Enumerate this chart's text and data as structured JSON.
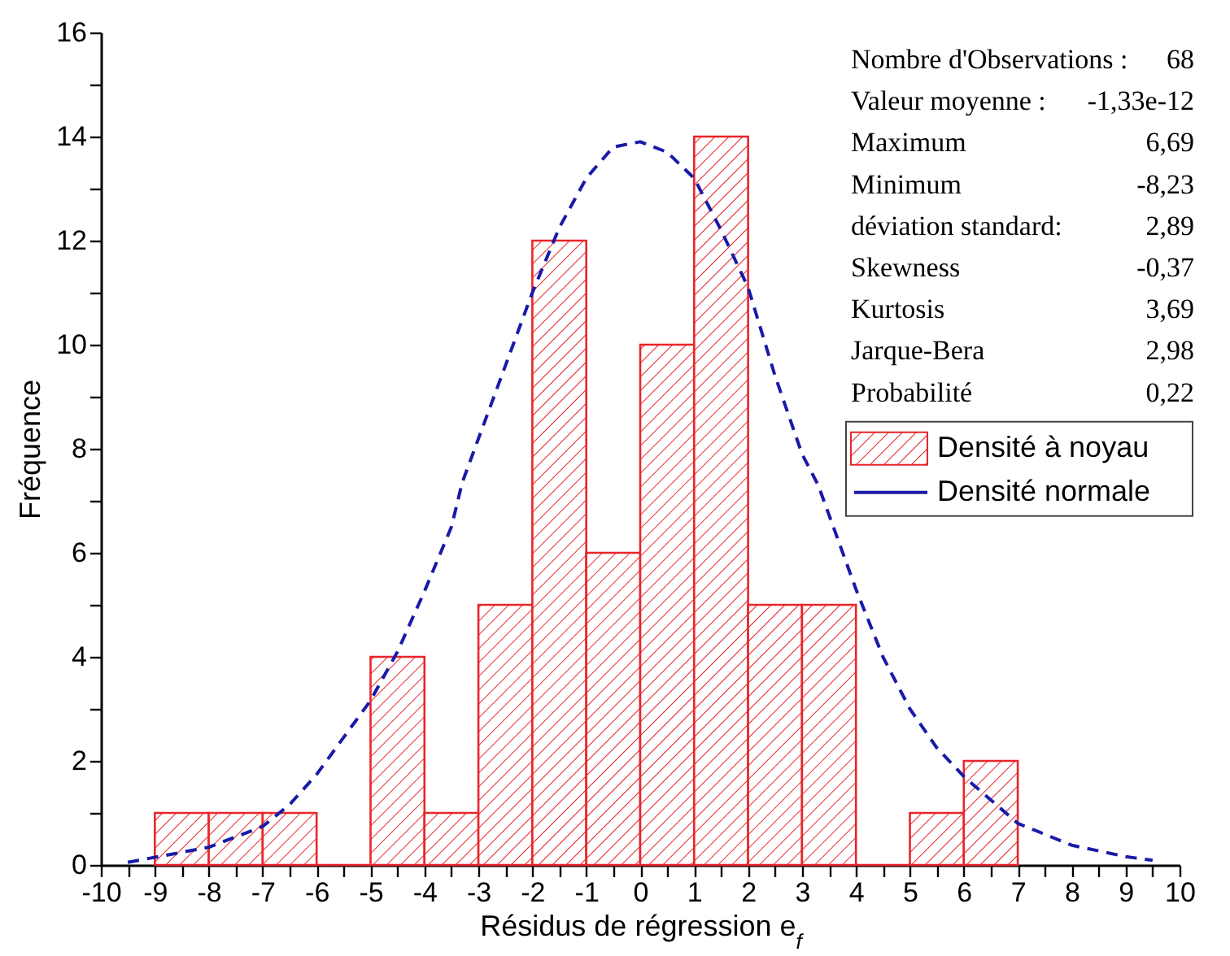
{
  "chart_data": {
    "type": "histogram",
    "xlabel": "Résidus de régression e$_{f}$",
    "ylabel": "Fréquence",
    "bins": [
      -9,
      -8,
      -7,
      -6,
      -5,
      -4,
      -3,
      -2,
      -1,
      0,
      1,
      2,
      3,
      4,
      5,
      6,
      7
    ],
    "series": [
      {
        "name": "Densité à noyau",
        "color": "#e8262b",
        "values": [
          1,
          1,
          1,
          0,
          4,
          1,
          5,
          12,
          6,
          10,
          14,
          5,
          5,
          0,
          1,
          2
        ]
      },
      {
        "name": "Densité normale",
        "type": "line",
        "color": "#1a1aa8",
        "line_style": "dashed",
        "x": [
          -9.5,
          -8,
          -7,
          -6.5,
          -6,
          -5,
          -4.5,
          -4,
          -3.5,
          -3.3,
          -2,
          -1.5,
          -1,
          -0.5,
          0,
          0.5,
          1,
          1.5,
          2,
          2.5,
          3,
          3.3,
          4,
          4.5,
          5,
          5.5,
          6,
          7,
          8,
          9,
          9.5
        ],
        "values": [
          0.05,
          0.34,
          0.74,
          1.16,
          1.74,
          3.16,
          4.1,
          5.26,
          6.5,
          7.35,
          11.0,
          12.25,
          13.2,
          13.8,
          13.9,
          13.7,
          13.2,
          12.2,
          11.1,
          9.4,
          7.9,
          7.3,
          5.3,
          4.0,
          3.0,
          2.25,
          1.7,
          0.8,
          0.38,
          0.16,
          0.09
        ]
      }
    ],
    "xlim": [
      -10,
      10
    ],
    "xticks": [
      -10,
      {
        "value": -9.5,
        "label": null
      },
      -9,
      {
        "value": -8.5,
        "label": null
      },
      -8,
      {
        "value": -7.5,
        "label": null
      },
      -7,
      {
        "value": -6.5,
        "label": null
      },
      -6,
      {
        "value": -5.5,
        "label": null
      },
      -5,
      {
        "value": -4.5,
        "label": null
      },
      -4,
      {
        "value": -3.5,
        "label": null
      },
      -3,
      {
        "value": -2.5,
        "label": null
      },
      -2,
      {
        "value": -1.5,
        "label": null
      },
      -1,
      {
        "value": -0.5,
        "label": null
      },
      0,
      {
        "value": 0.5,
        "label": null
      },
      1,
      {
        "value": 1.5,
        "label": null
      },
      2,
      {
        "value": 2.5,
        "label": null
      },
      3,
      {
        "value": 3.5,
        "label": null
      },
      4,
      {
        "value": 4.5,
        "label": null
      },
      5,
      {
        "value": 5.5,
        "label": null
      },
      6,
      {
        "value": 6.5,
        "label": null
      },
      7,
      {
        "value": 7.5,
        "label": null
      },
      8,
      {
        "value": 8.5,
        "label": null
      },
      9,
      {
        "value": 9.5,
        "label": null
      },
      10
    ],
    "ylim": [
      0,
      16
    ],
    "yticks": [
      0,
      {
        "value": 1,
        "label": null
      },
      2,
      {
        "value": 3,
        "label": null
      },
      4,
      {
        "value": 5,
        "label": null
      },
      6,
      {
        "value": 7,
        "label": null
      },
      8,
      {
        "value": 9,
        "label": null
      },
      10,
      {
        "value": 11,
        "label": null
      },
      12,
      {
        "value": 13,
        "label": null
      },
      14,
      {
        "value": 15,
        "label": null
      },
      16
    ],
    "grid": false,
    "legend": "right",
    "annotations": [
      "Nombre d'Observations : 68",
      "Valeur moyenne : -1,33e-12",
      "Maximum 6,69",
      "Minimum -8,23",
      "déviation standard: 2,89",
      "Skewness -0,37",
      "Kurtosis 3,69",
      "Jarque-Bera 2,98",
      "Probabilité 0,22"
    ]
  }
}
